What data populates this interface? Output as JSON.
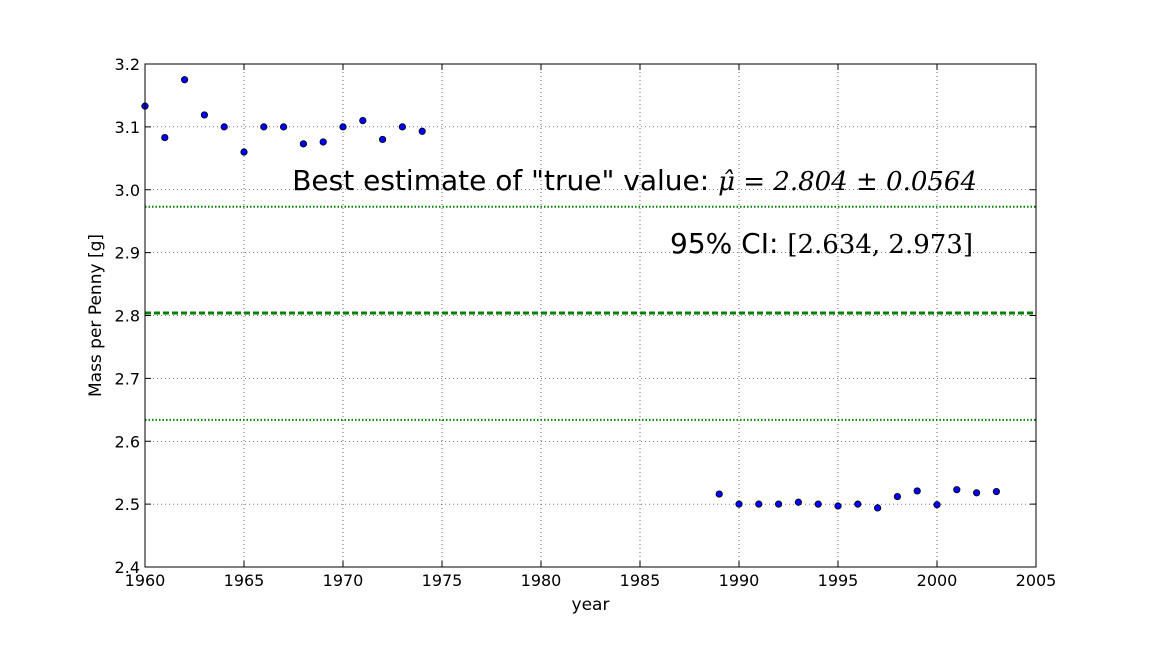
{
  "chart_data": {
    "type": "scatter",
    "title": "",
    "xlabel": "year",
    "ylabel": "Mass per Penny [g]",
    "xlim": [
      1960,
      2005
    ],
    "ylim": [
      2.4,
      3.2
    ],
    "xticks": [
      1960,
      1965,
      1970,
      1975,
      1980,
      1985,
      1990,
      1995,
      2000,
      2005
    ],
    "yticks": [
      2.4,
      2.5,
      2.6,
      2.7,
      2.8,
      2.9,
      3.0,
      3.1,
      3.2
    ],
    "xtick_labels": [
      "1960",
      "1965",
      "1970",
      "1975",
      "1980",
      "1985",
      "1990",
      "1995",
      "2000",
      "2005"
    ],
    "ytick_labels": [
      "2.4",
      "2.5",
      "2.6",
      "2.7",
      "2.8",
      "2.9",
      "3.0",
      "3.1",
      "3.2"
    ],
    "grid": true,
    "grid_style": "dotted",
    "points": [
      {
        "x": 1960,
        "y": 3.133
      },
      {
        "x": 1961,
        "y": 3.083
      },
      {
        "x": 1962,
        "y": 3.175
      },
      {
        "x": 1963,
        "y": 3.119
      },
      {
        "x": 1964,
        "y": 3.1
      },
      {
        "x": 1965,
        "y": 3.06
      },
      {
        "x": 1966,
        "y": 3.1
      },
      {
        "x": 1967,
        "y": 3.1
      },
      {
        "x": 1968,
        "y": 3.073
      },
      {
        "x": 1969,
        "y": 3.076
      },
      {
        "x": 1970,
        "y": 3.1
      },
      {
        "x": 1971,
        "y": 3.11
      },
      {
        "x": 1972,
        "y": 3.08
      },
      {
        "x": 1973,
        "y": 3.1
      },
      {
        "x": 1974,
        "y": 3.093
      },
      {
        "x": 1989,
        "y": 2.516
      },
      {
        "x": 1990,
        "y": 2.5
      },
      {
        "x": 1991,
        "y": 2.5
      },
      {
        "x": 1992,
        "y": 2.5
      },
      {
        "x": 1993,
        "y": 2.503
      },
      {
        "x": 1994,
        "y": 2.5
      },
      {
        "x": 1995,
        "y": 2.497
      },
      {
        "x": 1996,
        "y": 2.5
      },
      {
        "x": 1997,
        "y": 2.494
      },
      {
        "x": 1998,
        "y": 2.512
      },
      {
        "x": 1999,
        "y": 2.521
      },
      {
        "x": 2000,
        "y": 2.499
      },
      {
        "x": 2001,
        "y": 2.523
      },
      {
        "x": 2002,
        "y": 2.518
      },
      {
        "x": 2003,
        "y": 2.52
      }
    ],
    "marker_color": "#0000ff",
    "hlines": [
      {
        "y": 2.804,
        "style": "dashed",
        "color": "#008000"
      },
      {
        "y": 2.973,
        "style": "dotted",
        "color": "#008000"
      },
      {
        "y": 2.634,
        "style": "dotted",
        "color": "#008000"
      }
    ],
    "annotations": {
      "estimate_text": "Best estimate of \"true\" value: ",
      "estimate_math": "μ̂ = 2.804 ± 0.0564",
      "ci_text": "95% CI: ",
      "ci_math": "[2.634, 2.973]"
    }
  }
}
